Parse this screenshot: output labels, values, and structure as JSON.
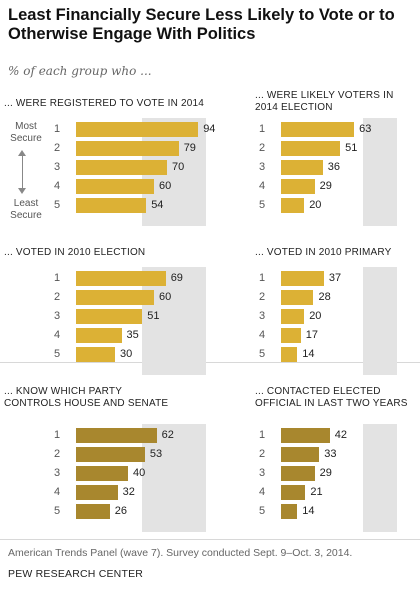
{
  "title": "Least Financially Secure Less Likely to Vote or to Otherwise Engage With Politics",
  "subtitle": "% of each group who ...",
  "scale_labels": {
    "most": "Most\nSecure",
    "least": "Least\nSecure"
  },
  "source": "American Trends Panel (wave 7). Survey conducted Sept. 9–Oct. 3, 2014.",
  "credit": "PEW RESEARCH CENTER",
  "colors": {
    "gold": "#dcb135",
    "olive": "#a8872e",
    "track": "#e3e3e3"
  },
  "chart_data": [
    {
      "type": "bar",
      "title": "... WERE REGISTERED TO VOTE IN 2014",
      "categories": [
        "1",
        "2",
        "3",
        "4",
        "5"
      ],
      "values": [
        94,
        79,
        70,
        60,
        54
      ],
      "color": "#dcb135",
      "xlim": [
        0,
        100
      ]
    },
    {
      "type": "bar",
      "title": "... WERE LIKELY VOTERS IN 2014 ELECTION",
      "categories": [
        "1",
        "2",
        "3",
        "4",
        "5"
      ],
      "values": [
        63,
        51,
        36,
        29,
        20
      ],
      "color": "#dcb135",
      "xlim": [
        0,
        100
      ]
    },
    {
      "type": "bar",
      "title": "... VOTED IN 2010 ELECTION",
      "categories": [
        "1",
        "2",
        "3",
        "4",
        "5"
      ],
      "values": [
        69,
        60,
        51,
        35,
        30
      ],
      "color": "#dcb135",
      "xlim": [
        0,
        100
      ]
    },
    {
      "type": "bar",
      "title": "... VOTED IN 2010 PRIMARY",
      "categories": [
        "1",
        "2",
        "3",
        "4",
        "5"
      ],
      "values": [
        37,
        28,
        20,
        17,
        14
      ],
      "color": "#dcb135",
      "xlim": [
        0,
        100
      ]
    },
    {
      "type": "bar",
      "title": "... KNOW WHICH PARTY CONTROLS HOUSE AND SENATE",
      "categories": [
        "1",
        "2",
        "3",
        "4",
        "5"
      ],
      "values": [
        62,
        53,
        40,
        32,
        26
      ],
      "color": "#a8872e",
      "xlim": [
        0,
        100
      ]
    },
    {
      "type": "bar",
      "title": "... CONTACTED ELECTED OFFICIAL IN LAST TWO YEARS",
      "categories": [
        "1",
        "2",
        "3",
        "4",
        "5"
      ],
      "values": [
        42,
        33,
        29,
        21,
        14
      ],
      "color": "#a8872e",
      "xlim": [
        0,
        100
      ]
    }
  ]
}
